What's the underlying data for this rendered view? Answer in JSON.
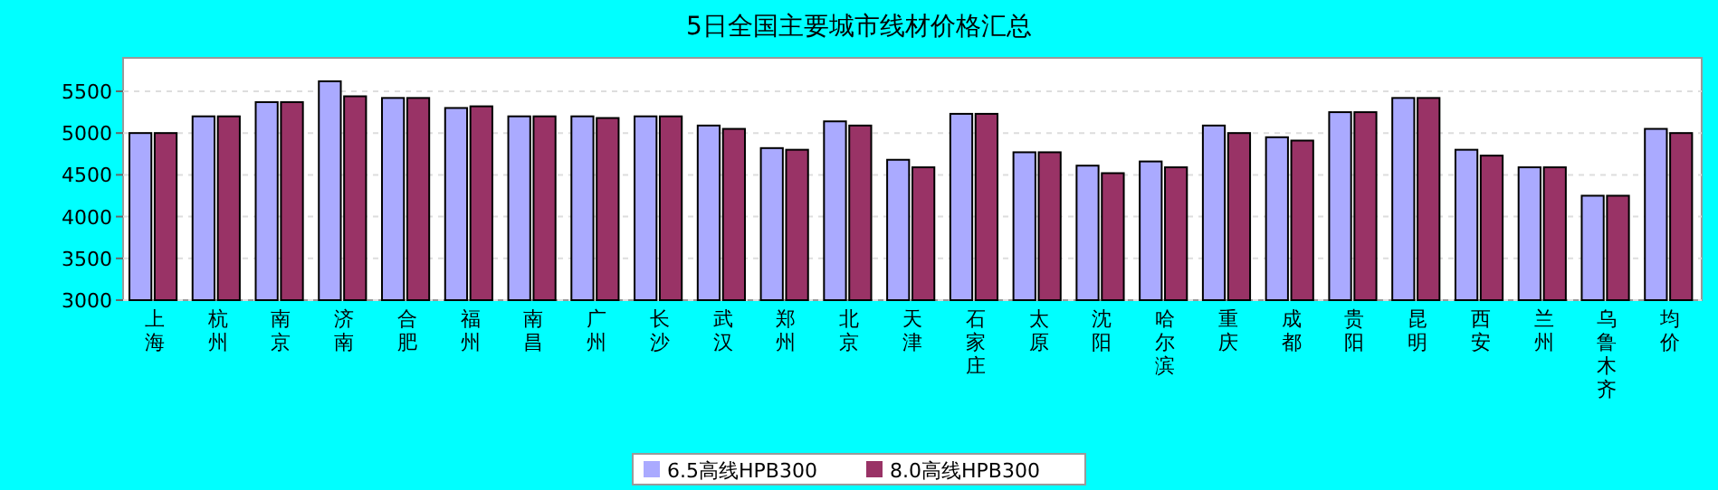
{
  "chart_data": {
    "type": "bar",
    "title": "5日全国主要城市线材价格汇总",
    "categories": [
      "上海",
      "杭州",
      "南京",
      "济南",
      "合肥",
      "福州",
      "南昌",
      "广州",
      "长沙",
      "武汉",
      "郑州",
      "北京",
      "天津",
      "石家庄",
      "太原",
      "沈阳",
      "哈尔滨",
      "重庆",
      "成都",
      "贵阳",
      "昆明",
      "西安",
      "兰州",
      "乌鲁木齐",
      "均价"
    ],
    "series": [
      {
        "name": "6.5高线HPB300",
        "color": "#aaaaff",
        "values": [
          5000,
          5200,
          5370,
          5620,
          5420,
          5300,
          5200,
          5200,
          5200,
          5090,
          4820,
          5140,
          4680,
          5230,
          4770,
          4610,
          4660,
          5090,
          4950,
          5250,
          5420,
          4800,
          4590,
          4250,
          5050
        ]
      },
      {
        "name": "8.0高线HPB300",
        "color": "#993366",
        "values": [
          5000,
          5200,
          5370,
          5440,
          5420,
          5320,
          5200,
          5180,
          5200,
          5050,
          4800,
          5090,
          4590,
          5230,
          4770,
          4520,
          4590,
          5000,
          4910,
          5250,
          5420,
          4730,
          4590,
          4250,
          5000
        ]
      }
    ],
    "ylim": [
      3000,
      5900
    ],
    "yticks": [
      3000,
      3500,
      4000,
      4500,
      5000,
      5500
    ],
    "grid": "y",
    "legend": "bottom"
  }
}
